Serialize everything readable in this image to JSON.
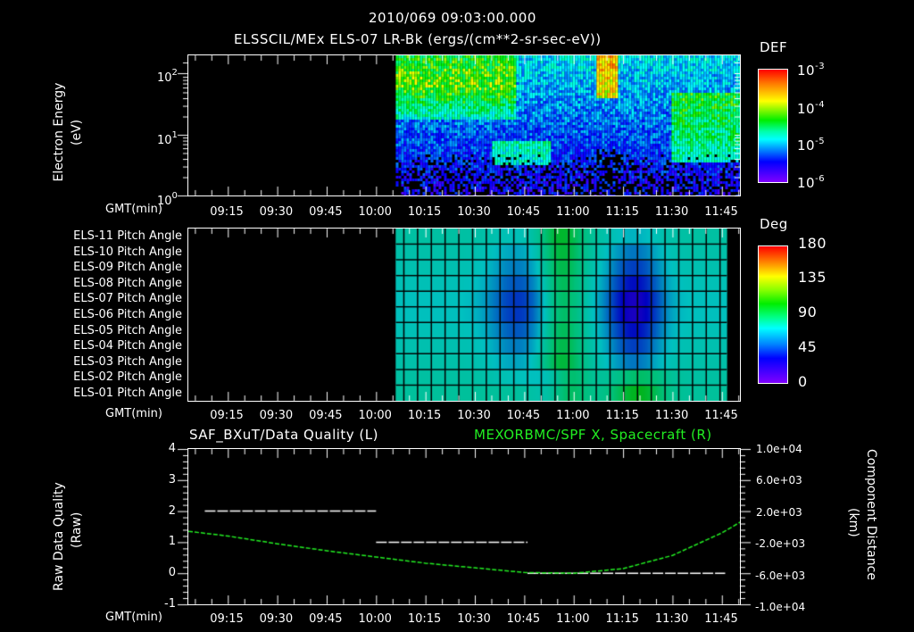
{
  "header": {
    "datetime": "2010/069 09:03:00.000",
    "subtitle": "ELSSCIL/MEx ELS-07 LR-Bk  (ergs/(cm**2-sr-sec-eV))"
  },
  "panel1": {
    "ylabel": "Electron Energy",
    "yunits": "(eV)",
    "yticks": [
      {
        "base": "10",
        "exp": "2"
      },
      {
        "base": "10",
        "exp": "1"
      },
      {
        "base": "10",
        "exp": "0"
      }
    ],
    "xaxis_label": "GMT(min)",
    "colorbar": {
      "title": "DEF",
      "ticks": [
        {
          "base": "10",
          "exp": "-3"
        },
        {
          "base": "10",
          "exp": "-4"
        },
        {
          "base": "10",
          "exp": "-5"
        },
        {
          "base": "10",
          "exp": "-6"
        }
      ]
    }
  },
  "panel2": {
    "row_labels": [
      "ELS-11 Pitch Angle",
      "ELS-10 Pitch Angle",
      "ELS-09 Pitch Angle",
      "ELS-08 Pitch Angle",
      "ELS-07 Pitch Angle",
      "ELS-06 Pitch Angle",
      "ELS-05 Pitch Angle",
      "ELS-04 Pitch Angle",
      "ELS-03 Pitch Angle",
      "ELS-02 Pitch Angle",
      "ELS-01 Pitch Angle"
    ],
    "xaxis_label": "GMT(min)",
    "colorbar": {
      "title": "Deg",
      "ticks": [
        "180",
        "135",
        "90",
        "45",
        "0"
      ]
    }
  },
  "panel3": {
    "left_title": "SAF_BXuT/Data Quality (L)",
    "right_title": "MEXORBMC/SPF X, Spacecraft (R)",
    "ylabel_left": "Raw Data Quality",
    "yunits_left": "(Raw)",
    "yticks_left": [
      "4",
      "3",
      "2",
      "1",
      "0",
      "-1"
    ],
    "ylabel_right": "Component Distance",
    "yunits_right": "(km)",
    "yticks_right": [
      "1.0e+04",
      "6.0e+03",
      "2.0e+03",
      "-2.0e+03",
      "-6.0e+03",
      "-1.0e+04"
    ],
    "xaxis_label": "GMT(min)"
  },
  "time_ticks": [
    "09:15",
    "09:30",
    "09:45",
    "10:00",
    "10:15",
    "10:30",
    "10:45",
    "11:00",
    "11:15",
    "11:30",
    "11:45"
  ],
  "colors": {
    "background": "#000000",
    "axes": "#ffffff",
    "spf_x_line": "#22ee22",
    "quality_line": "#ffffff"
  },
  "chart_data": [
    {
      "type": "heatmap",
      "title": "ELSSCIL/MEx ELS-07 LR-Bk (ergs/(cm**2-sr-sec-eV))",
      "xlabel": "GMT(min)",
      "ylabel": "Electron Energy (eV)",
      "yscale": "log",
      "ylim": [
        1,
        150
      ],
      "xlim": [
        "09:03",
        "11:51"
      ],
      "data_start": "10:06",
      "colorbar": {
        "label": "DEF",
        "scale": "log",
        "range": [
          1e-06,
          0.001
        ]
      },
      "features": [
        {
          "time": "10:06-10:40",
          "energy_eV": "20-150",
          "level": "~1e-4 (green/cyan)"
        },
        {
          "time": "10:30-10:55",
          "energy_eV": "4-8",
          "level": "~1e-5 (cyan arc)"
        },
        {
          "time": "10:58-11:05",
          "energy_eV": "40-150",
          "level": "~2e-4 (green)"
        },
        {
          "time": "11:20-11:51",
          "energy_eV": "5-60",
          "level": "~1e-5 (cyan)"
        }
      ]
    },
    {
      "type": "heatmap",
      "title": "ELS Pitch Angles",
      "xlabel": "GMT(min)",
      "categories": [
        "ELS-11",
        "ELS-10",
        "ELS-09",
        "ELS-08",
        "ELS-07",
        "ELS-06",
        "ELS-05",
        "ELS-04",
        "ELS-03",
        "ELS-02",
        "ELS-01"
      ],
      "xlim": [
        "09:03",
        "11:51"
      ],
      "data_range": [
        "10:06",
        "11:46"
      ],
      "colorbar": {
        "label": "Deg",
        "range": [
          0,
          180
        ],
        "ticks": [
          0,
          45,
          90,
          135,
          180
        ]
      },
      "features": [
        {
          "time": "10:35-10:45",
          "anodes": "ELS-08..ELS-06",
          "value_deg": 35
        },
        {
          "time": "10:50-11:05",
          "anodes": "all",
          "value_deg": 100
        },
        {
          "time": "11:15-11:30",
          "anodes": "ELS-08..ELS-06",
          "value_deg": 15
        },
        {
          "time": "11:15-11:30",
          "anodes": "ELS-01",
          "value_deg": 120
        }
      ]
    },
    {
      "type": "line",
      "title": "SAF_BXuT/Data Quality (L) & MEXORBMC/SPF X, Spacecraft (R)",
      "xlabel": "GMT(min)",
      "ylabel": "Raw Data Quality (Raw)",
      "ylabel_right": "Component Distance (km)",
      "ylim": [
        -1,
        4
      ],
      "ylim_right": [
        -10000,
        10000
      ],
      "series": [
        {
          "name": "SAF_BXuT/Data Quality",
          "axis": "left",
          "color": "#ffffff",
          "x": [
            "09:08",
            "10:00",
            "10:00",
            "10:46",
            "10:46",
            "11:46"
          ],
          "values": [
            2,
            2,
            1,
            1,
            0,
            0
          ]
        },
        {
          "name": "MEXORBMC/SPF X, Spacecraft",
          "axis": "right",
          "color": "#22ee22",
          "x": [
            "09:03",
            "09:15",
            "09:30",
            "09:45",
            "10:00",
            "10:15",
            "10:30",
            "10:45",
            "11:00",
            "11:15",
            "11:30",
            "11:45",
            "11:51"
          ],
          "values": [
            -600,
            -1200,
            -2200,
            -3100,
            -3900,
            -4700,
            -5300,
            -5900,
            -6000,
            -5400,
            -3700,
            -800,
            700
          ]
        }
      ]
    }
  ]
}
